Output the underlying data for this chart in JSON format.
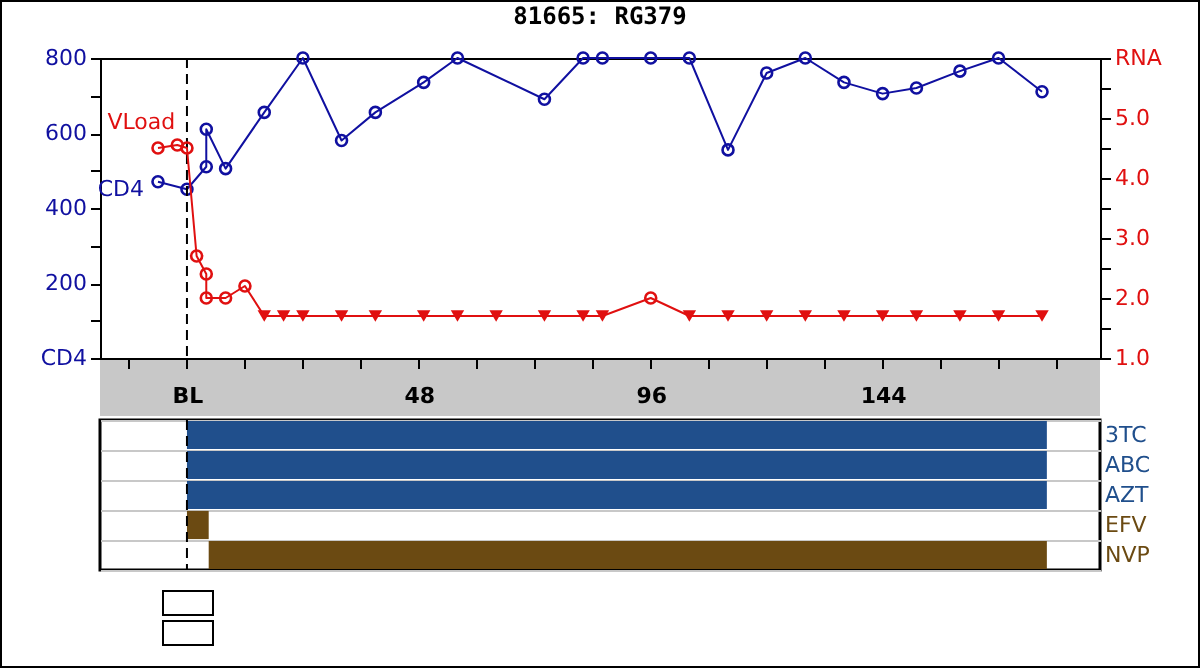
{
  "chart_data": [
    {
      "type": "line",
      "title": "81665: RG379",
      "xlim": [
        -18,
        189
      ],
      "xticks": [
        {
          "value": -12,
          "label": null
        },
        {
          "value": 0,
          "label": "BL"
        },
        {
          "value": 12,
          "label": null
        },
        {
          "value": 24,
          "label": null
        },
        {
          "value": 36,
          "label": null
        },
        48,
        {
          "value": 60,
          "label": null
        },
        {
          "value": 72,
          "label": null
        },
        {
          "value": 84,
          "label": null
        },
        96,
        {
          "value": 108,
          "label": null
        },
        {
          "value": 120,
          "label": null
        },
        {
          "value": 132,
          "label": null
        },
        144,
        {
          "value": 156,
          "label": null
        },
        {
          "value": 168,
          "label": null
        },
        {
          "value": 180,
          "label": null
        }
      ],
      "ylim": [
        0,
        800
      ],
      "yticks": [
        {
          "value": 0,
          "label": "CD4"
        },
        {
          "value": 100,
          "label": null
        },
        {
          "value": 200,
          "label": "200"
        },
        {
          "value": 300,
          "label": null
        },
        {
          "value": 400,
          "label": "400"
        },
        {
          "value": 500,
          "label": null
        },
        {
          "value": 600,
          "label": "600"
        },
        {
          "value": 700,
          "label": null
        },
        {
          "value": 800,
          "label": "800"
        }
      ],
      "y2lim": [
        1,
        6
      ],
      "y2ticks": [
        {
          "value": 1,
          "label": "1.0"
        },
        {
          "value": 1.5,
          "label": null
        },
        {
          "value": 2,
          "label": "2.0"
        },
        {
          "value": 2.5,
          "label": null
        },
        {
          "value": 3,
          "label": "3.0"
        },
        {
          "value": 3.5,
          "label": null
        },
        {
          "value": 4,
          "label": "4.0"
        },
        {
          "value": 4.5,
          "label": null
        },
        {
          "value": 5,
          "label": "5.0"
        },
        {
          "value": 5.5,
          "label": null
        },
        {
          "value": 6,
          "label": "RNA"
        }
      ],
      "grid": false,
      "ref_lines": [
        {
          "axis": "x",
          "value": 0,
          "color": "#000000",
          "line_style": "dashed"
        }
      ],
      "series": [
        {
          "name": "CD4",
          "type": "line",
          "color": "#1010a0",
          "marker": "circle",
          "x": [
            -6,
            0,
            4,
            4,
            8,
            16,
            24,
            32,
            39,
            49,
            56,
            74,
            82,
            86,
            96,
            104,
            112,
            120,
            128,
            136,
            144,
            151,
            160,
            168,
            177
          ],
          "values": [
            470,
            450,
            510,
            610,
            505,
            655,
            800,
            580,
            655,
            735,
            800,
            690,
            800,
            800,
            800,
            800,
            555,
            760,
            800,
            735,
            705,
            720,
            765,
            800,
            710
          ]
        },
        {
          "name": "VLoad",
          "type": "line",
          "axis": "y2",
          "color": "#e01010",
          "marker": "none",
          "x": [
            -6,
            -2,
            0,
            2,
            4,
            4,
            8,
            12,
            16,
            20,
            24,
            32,
            39,
            49,
            56,
            64,
            74,
            82,
            86,
            96,
            104,
            112,
            120,
            128,
            136,
            144,
            151,
            160,
            168,
            177
          ],
          "values": [
            4.5,
            4.55,
            4.5,
            2.7,
            2.4,
            2.0,
            2.0,
            2.2,
            1.7,
            1.7,
            1.7,
            1.7,
            1.7,
            1.7,
            1.7,
            1.7,
            1.7,
            1.7,
            1.7,
            2.0,
            1.7,
            1.7,
            1.7,
            1.7,
            1.7,
            1.7,
            1.7,
            1.7,
            1.7,
            1.7
          ]
        },
        {
          "type": "scatter",
          "axis": "y2",
          "color": "#e01010",
          "marker": "circle",
          "x": [
            -6,
            -2,
            0,
            2,
            4,
            4,
            8,
            12,
            96
          ],
          "values": [
            4.5,
            4.55,
            4.5,
            2.7,
            2.4,
            2.0,
            2.0,
            2.2,
            2.0
          ]
        },
        {
          "type": "scatter",
          "axis": "y2",
          "color": "#e01010",
          "marker": "triangle",
          "x": [
            16,
            20,
            24,
            32,
            39,
            49,
            56,
            64,
            74,
            82,
            86,
            104,
            112,
            120,
            128,
            136,
            144,
            151,
            160,
            168,
            177
          ],
          "values": [
            1.7,
            1.7,
            1.7,
            1.7,
            1.7,
            1.7,
            1.7,
            1.7,
            1.7,
            1.7,
            1.7,
            1.7,
            1.7,
            1.7,
            1.7,
            1.7,
            1.7,
            1.7,
            1.7,
            1.7,
            1.7
          ]
        }
      ]
    },
    {
      "type": "bar",
      "orientation": "horizontal",
      "categories": [
        "3TC",
        "ABC",
        "AZT",
        "EFV",
        "NVP"
      ],
      "base": [
        0,
        0,
        0,
        0,
        4.5
      ],
      "values": [
        178,
        178,
        178,
        4.5,
        173.5
      ],
      "colors": [
        "#204f8c",
        "#204f8c",
        "#204f8c",
        "#6b4a12",
        "#6b4a12"
      ],
      "xlim": [
        -18,
        189
      ],
      "tick_labels": "y",
      "grid": "y",
      "ref_lines": [
        {
          "axis": "x",
          "value": 0,
          "color": "#000000",
          "line_style": "dashed"
        }
      ]
    }
  ]
}
